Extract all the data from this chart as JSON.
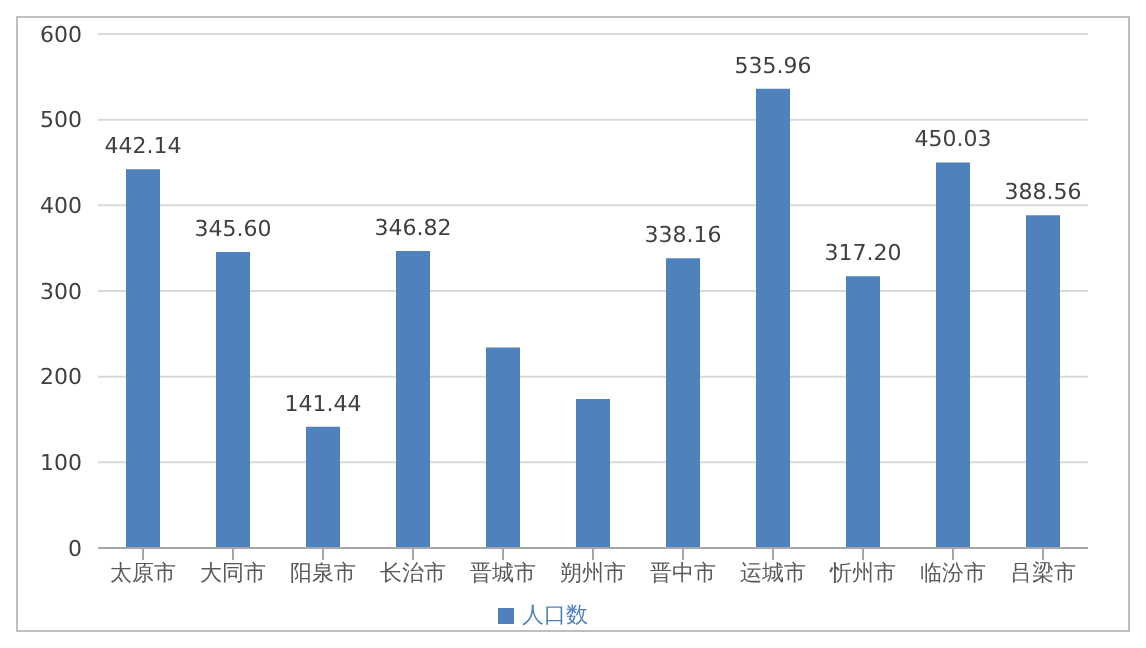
{
  "chart_data": {
    "type": "bar",
    "categories": [
      "太原市",
      "大同市",
      "阳泉市",
      "长治市",
      "晋城市",
      "朔州市",
      "晋中市",
      "运城市",
      "忻州市",
      "临汾市",
      "吕梁市"
    ],
    "series": [
      {
        "name": "人口数",
        "color": "#4f81bd",
        "values": [
          442.14,
          345.6,
          141.44,
          346.82,
          234,
          174,
          338.16,
          535.96,
          317.2,
          450.03,
          388.56
        ],
        "value_labels": [
          "442.14",
          "345.60",
          "141.44",
          "346.82",
          null,
          null,
          "338.16",
          "535.96",
          "317.20",
          "450.03",
          "388.56"
        ]
      }
    ],
    "ylim": [
      0,
      600
    ],
    "yticks": [
      0,
      100,
      200,
      300,
      400,
      500,
      600
    ],
    "grid": "y",
    "legend": "bottom"
  }
}
